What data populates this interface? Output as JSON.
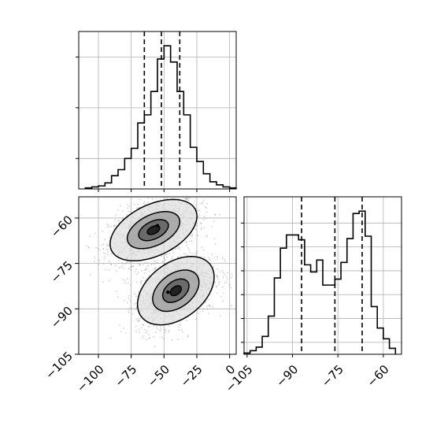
{
  "chart_data": {
    "type": "corner",
    "grid": true,
    "parameters": [
      {
        "name": "",
        "hist_type": "step",
        "quantiles": [
          -65,
          -52,
          -38
        ],
        "bins": [
          -110,
          -105,
          -100,
          -95,
          -90,
          -85,
          -80,
          -75,
          -70,
          -65,
          -60,
          -55,
          -50,
          -45,
          -40,
          -35,
          -30,
          -25,
          -20,
          -15,
          -10,
          -5,
          0,
          5
        ],
        "counts": [
          1,
          2,
          3,
          6,
          13,
          19,
          30,
          40,
          65,
          73,
          96,
          128,
          141,
          125,
          96,
          73,
          41,
          27,
          15,
          7,
          4,
          2,
          1
        ],
        "count_ticks": [
          30,
          80,
          130
        ],
        "range": [
          -115,
          5
        ]
      },
      {
        "name": "",
        "hist_type": "step",
        "quantiles": [
          -87,
          -76,
          -67
        ],
        "bins": [
          -106,
          -104,
          -102,
          -100,
          -98,
          -96,
          -94,
          -92,
          -90,
          -88,
          -86,
          -84,
          -82,
          -80,
          -78,
          -76,
          -74,
          -72,
          -70,
          -68,
          -66,
          -64,
          -62,
          -60,
          -58,
          -56
        ],
        "counts": [
          1,
          3,
          6,
          15,
          32,
          64,
          89,
          100,
          100,
          96,
          75,
          69,
          79,
          58,
          58,
          63,
          77,
          97,
          118,
          120,
          99,
          40,
          22,
          13,
          5
        ],
        "count_ticks": [
          10,
          30,
          50,
          70,
          90,
          110
        ],
        "range": [
          -106,
          -54
        ]
      }
    ],
    "x_ticks": {
      "param1": [
        "−100",
        "−75",
        "−50",
        "−25",
        "0"
      ],
      "param1_values": [
        -100,
        -75,
        -50,
        -25,
        0
      ],
      "param2": [
        "−105",
        "−90",
        "−75",
        "−60"
      ],
      "param2_values": [
        -105,
        -90,
        -75,
        -60
      ]
    },
    "y_ticks": {
      "param2": [
        "−60",
        "−75",
        "−90",
        "−105"
      ],
      "param2_values": [
        -60,
        -75,
        -90,
        -105
      ]
    },
    "scatter_2d": {
      "x_range": [
        -115,
        5
      ],
      "y_range": [
        -105,
        -53
      ],
      "clusters": [
        {
          "center": [
            -58,
            -64
          ],
          "sigma": [
            17,
            5.2
          ],
          "rho": 0.45
        },
        {
          "center": [
            -41,
            -84
          ],
          "sigma": [
            15,
            5.8
          ],
          "rho": 0.4
        }
      ],
      "contour_levels": [
        0.2,
        0.5,
        0.85
      ],
      "contour_fills": [
        "#e0e0e0",
        "#9a9a9a",
        "#555555"
      ],
      "core_marks": [
        {
          "x": -55,
          "y": -62.5
        },
        {
          "x": -47,
          "y": -84.5
        }
      ]
    }
  }
}
